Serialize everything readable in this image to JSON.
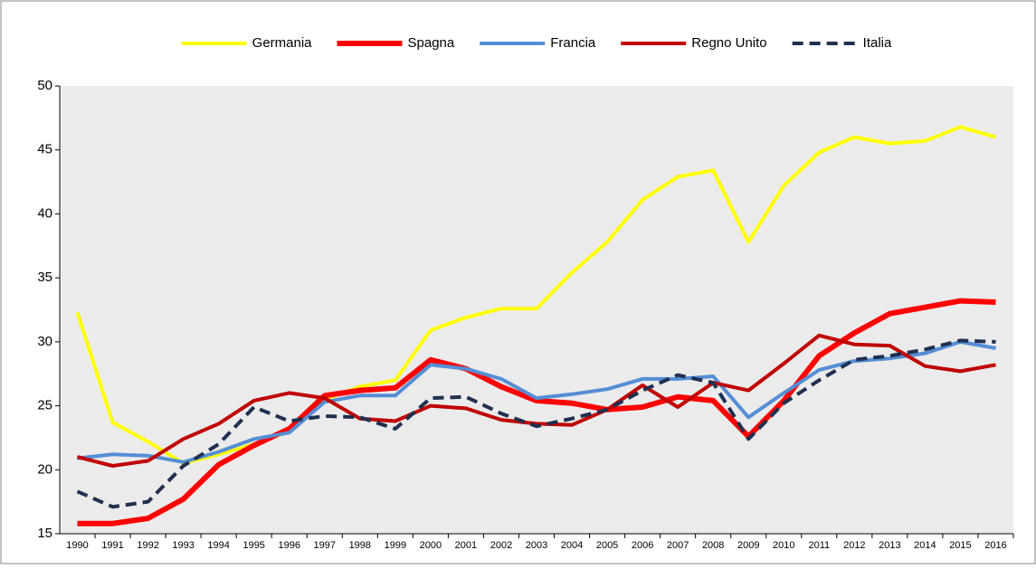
{
  "chart_data": {
    "type": "line",
    "categories": [
      "1990",
      "1991",
      "1992",
      "1993",
      "1994",
      "1995",
      "1996",
      "1997",
      "1998",
      "1999",
      "2000",
      "2001",
      "2002",
      "2003",
      "2004",
      "2005",
      "2006",
      "2007",
      "2008",
      "2009",
      "2010",
      "2011",
      "2012",
      "2013",
      "2014",
      "2015",
      "2016"
    ],
    "series": [
      {
        "name": "Germania",
        "color": "#ffff00",
        "width": 4,
        "dashed": false,
        "values": [
          32.3,
          23.7,
          22.2,
          20.5,
          21.2,
          22.0,
          23.0,
          25.5,
          26.5,
          27.0,
          30.9,
          31.9,
          32.6,
          32.6,
          35.4,
          37.8,
          41.1,
          42.9,
          43.4,
          37.8,
          42.2,
          44.8,
          46.0,
          45.5,
          45.7,
          46.8,
          46.0
        ]
      },
      {
        "name": "Spagna",
        "color": "#ff0000",
        "width": 6,
        "dashed": false,
        "values": [
          15.8,
          15.8,
          16.2,
          17.7,
          20.4,
          21.9,
          23.2,
          25.8,
          26.2,
          26.4,
          28.6,
          27.9,
          26.5,
          25.4,
          25.2,
          24.7,
          24.9,
          25.7,
          25.4,
          22.6,
          25.4,
          28.9,
          30.7,
          32.2,
          32.7,
          33.2,
          33.1
        ]
      },
      {
        "name": "Francia",
        "color": "#558ed5",
        "width": 4,
        "dashed": false,
        "values": [
          20.9,
          21.2,
          21.1,
          20.6,
          21.4,
          22.4,
          22.9,
          25.3,
          25.8,
          25.8,
          28.2,
          27.9,
          27.1,
          25.6,
          25.9,
          26.3,
          27.1,
          27.1,
          27.3,
          24.1,
          26.0,
          27.8,
          28.5,
          28.7,
          29.1,
          30.0,
          29.5
        ]
      },
      {
        "name": "Regno Unito",
        "color": "#c00000",
        "width": 4,
        "dashed": false,
        "values": [
          21.0,
          20.3,
          20.7,
          22.4,
          23.6,
          25.4,
          26.0,
          25.6,
          24.0,
          23.8,
          25.0,
          24.8,
          23.9,
          23.6,
          23.5,
          24.7,
          26.6,
          24.9,
          26.8,
          26.2,
          28.3,
          30.5,
          29.8,
          29.7,
          28.1,
          27.7,
          28.2
        ]
      },
      {
        "name": "Italia",
        "color": "#1f3050",
        "width": 4,
        "dashed": true,
        "values": [
          18.3,
          17.1,
          17.5,
          20.3,
          22.0,
          24.9,
          23.8,
          24.2,
          24.1,
          23.2,
          25.6,
          25.7,
          24.4,
          23.4,
          24.0,
          24.7,
          26.2,
          27.4,
          26.8,
          22.4,
          25.2,
          27.0,
          28.6,
          28.9,
          29.4,
          30.1,
          30.0
        ]
      }
    ],
    "ylim": [
      15,
      50
    ],
    "yticks": [
      15,
      20,
      25,
      30,
      35,
      40,
      45,
      50
    ],
    "grid": false,
    "legend": "top"
  }
}
